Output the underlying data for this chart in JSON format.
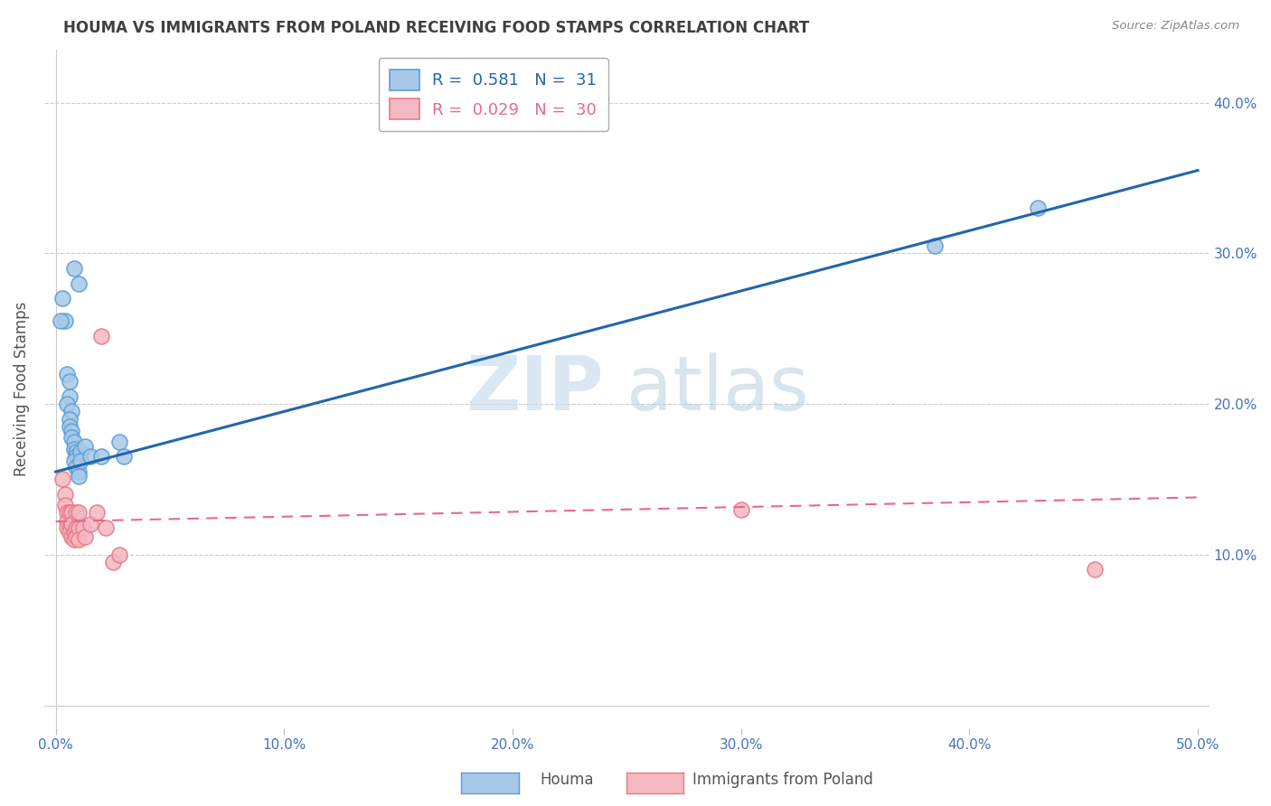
{
  "title": "HOUMA VS IMMIGRANTS FROM POLAND RECEIVING FOOD STAMPS CORRELATION CHART",
  "source": "Source: ZipAtlas.com",
  "ylabel": "Receiving Food Stamps",
  "xlim": [
    0.0,
    0.5
  ],
  "ylim": [
    0.0,
    0.42
  ],
  "watermark_zip": "ZIP",
  "watermark_atlas": "atlas",
  "houma_color": "#a8c8e8",
  "houma_edge_color": "#5a9fd4",
  "poland_color": "#f4b8c0",
  "poland_edge_color": "#e8788a",
  "houma_line_color": "#2166ac",
  "poland_line_color": "#e8688a",
  "background_color": "#ffffff",
  "grid_color": "#cccccc",
  "axis_label_color": "#4472c4",
  "title_color": "#404040",
  "houma_scatter": [
    [
      0.003,
      0.27
    ],
    [
      0.004,
      0.255
    ],
    [
      0.008,
      0.29
    ],
    [
      0.01,
      0.28
    ],
    [
      0.002,
      0.255
    ],
    [
      0.005,
      0.22
    ],
    [
      0.006,
      0.215
    ],
    [
      0.006,
      0.205
    ],
    [
      0.005,
      0.2
    ],
    [
      0.007,
      0.195
    ],
    [
      0.006,
      0.19
    ],
    [
      0.006,
      0.185
    ],
    [
      0.007,
      0.182
    ],
    [
      0.007,
      0.178
    ],
    [
      0.008,
      0.175
    ],
    [
      0.008,
      0.17
    ],
    [
      0.009,
      0.168
    ],
    [
      0.009,
      0.165
    ],
    [
      0.008,
      0.162
    ],
    [
      0.009,
      0.158
    ],
    [
      0.01,
      0.155
    ],
    [
      0.01,
      0.152
    ],
    [
      0.011,
      0.168
    ],
    [
      0.011,
      0.162
    ],
    [
      0.013,
      0.172
    ],
    [
      0.015,
      0.165
    ],
    [
      0.02,
      0.165
    ],
    [
      0.028,
      0.175
    ],
    [
      0.03,
      0.165
    ],
    [
      0.385,
      0.305
    ],
    [
      0.43,
      0.33
    ]
  ],
  "poland_scatter": [
    [
      0.003,
      0.15
    ],
    [
      0.004,
      0.14
    ],
    [
      0.004,
      0.133
    ],
    [
      0.005,
      0.128
    ],
    [
      0.005,
      0.122
    ],
    [
      0.005,
      0.118
    ],
    [
      0.006,
      0.128
    ],
    [
      0.006,
      0.118
    ],
    [
      0.006,
      0.115
    ],
    [
      0.007,
      0.112
    ],
    [
      0.007,
      0.128
    ],
    [
      0.007,
      0.12
    ],
    [
      0.008,
      0.115
    ],
    [
      0.008,
      0.11
    ],
    [
      0.009,
      0.128
    ],
    [
      0.009,
      0.118
    ],
    [
      0.009,
      0.112
    ],
    [
      0.01,
      0.128
    ],
    [
      0.01,
      0.118
    ],
    [
      0.01,
      0.11
    ],
    [
      0.012,
      0.118
    ],
    [
      0.013,
      0.112
    ],
    [
      0.015,
      0.12
    ],
    [
      0.018,
      0.128
    ],
    [
      0.02,
      0.245
    ],
    [
      0.022,
      0.118
    ],
    [
      0.025,
      0.095
    ],
    [
      0.028,
      0.1
    ],
    [
      0.3,
      0.13
    ],
    [
      0.455,
      0.09
    ]
  ],
  "x_ticks": [
    0.0,
    0.1,
    0.2,
    0.3,
    0.4,
    0.5
  ],
  "x_labels": [
    "0.0%",
    "10.0%",
    "20.0%",
    "30.0%",
    "40.0%",
    "50.0%"
  ],
  "y_ticks": [
    0.1,
    0.2,
    0.3,
    0.4
  ],
  "y_labels": [
    "10.0%",
    "20.0%",
    "30.0%",
    "40.0%"
  ]
}
